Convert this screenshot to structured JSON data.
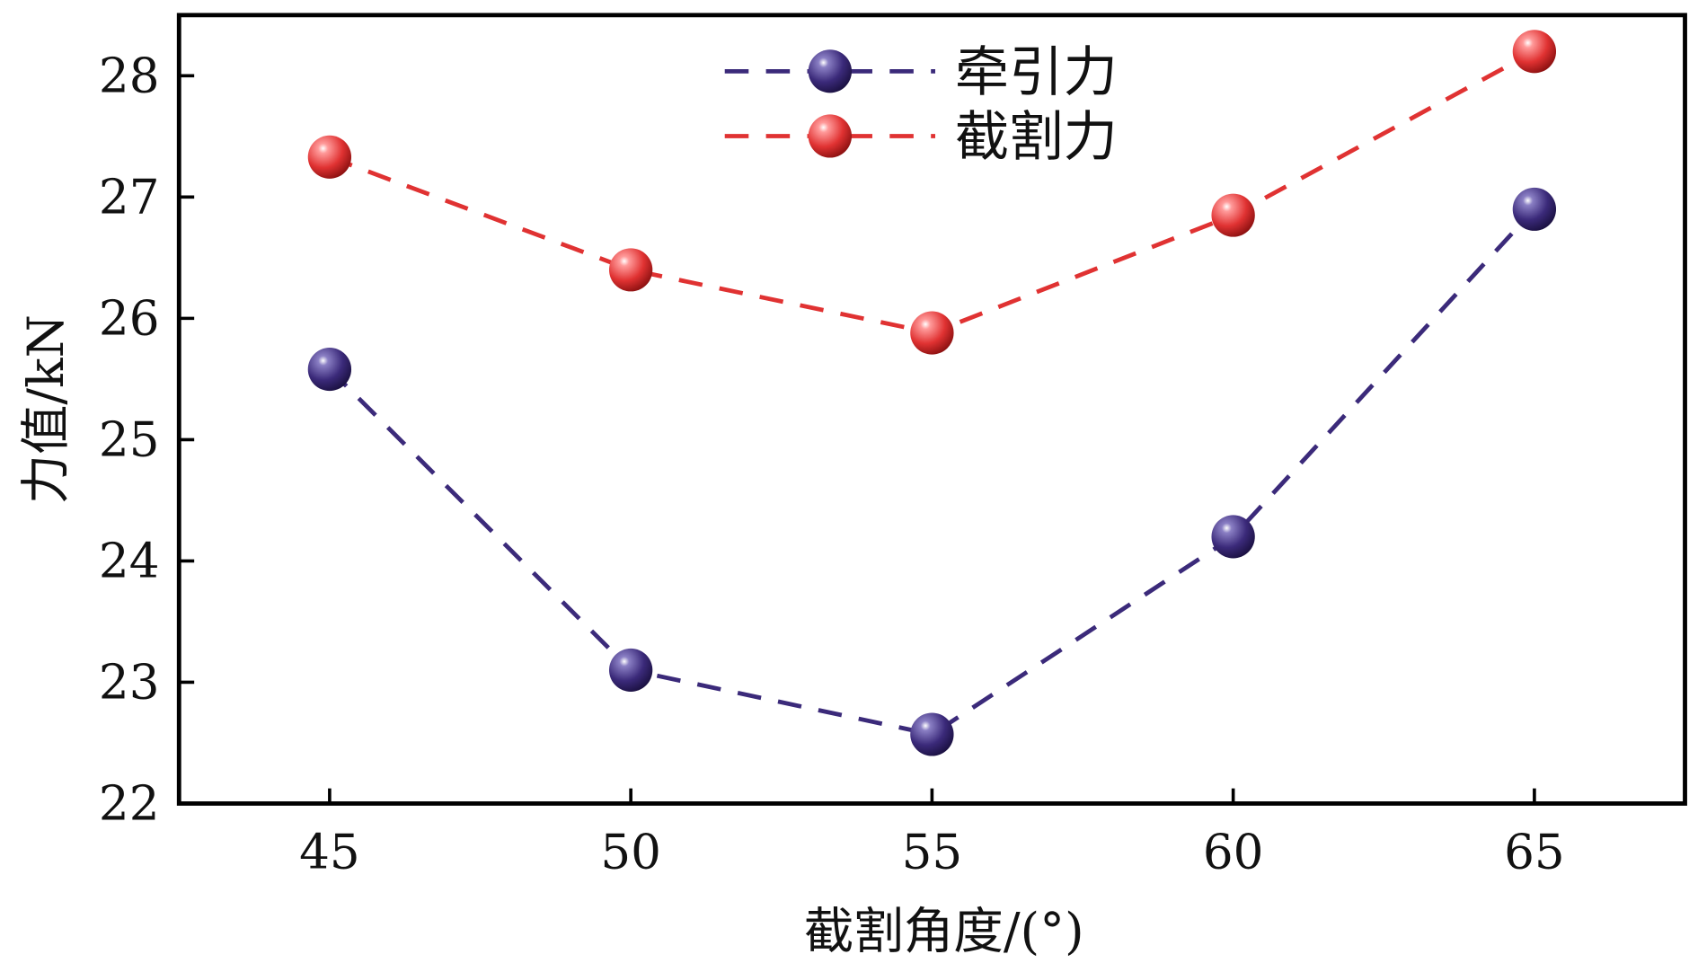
{
  "chart_data": {
    "type": "line",
    "title": "",
    "xlabel": "截割角度/(°)",
    "ylabel": "力值/kN",
    "x": [
      45,
      50,
      55,
      60,
      65
    ],
    "xlim": [
      42.5,
      67.5
    ],
    "ylim": [
      22,
      28.5
    ],
    "xticks": [
      45,
      50,
      55,
      60,
      65
    ],
    "yticks": [
      22,
      23,
      24,
      25,
      26,
      27,
      28
    ],
    "grid": false,
    "legend_position": "top-center",
    "series": [
      {
        "name": "牵引力",
        "color": "#3b2a7a",
        "values": [
          25.58,
          23.1,
          22.57,
          24.2,
          26.9
        ]
      },
      {
        "name": "截割力",
        "color": "#e03232",
        "values": [
          27.33,
          26.4,
          25.88,
          26.85,
          28.2
        ]
      }
    ]
  }
}
